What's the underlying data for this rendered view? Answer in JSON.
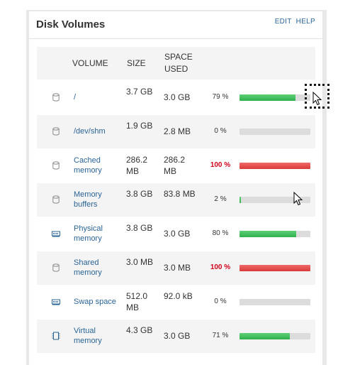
{
  "panel": {
    "title": "Disk Volumes",
    "edit_label": "EDIT",
    "help_label": "HELP"
  },
  "table": {
    "headers": {
      "volume": "VOLUME",
      "size": "SIZE",
      "space_used": "SPACE USED"
    },
    "rows": [
      {
        "icon": "disk-icon",
        "volume": "/",
        "size": "3.7 GB",
        "used": "3.0 GB",
        "percent_label": "79 %",
        "percent": 79,
        "critical": false
      },
      {
        "icon": "disk-icon",
        "volume": "/dev/shm",
        "size": "1.9 GB",
        "used": "2.8 MB",
        "percent_label": "0 %",
        "percent": 0,
        "critical": false
      },
      {
        "icon": "disk-icon",
        "volume": "Cached memory",
        "size": "286.2 MB",
        "used": "286.2 MB",
        "percent_label": "100 %",
        "percent": 100,
        "critical": true
      },
      {
        "icon": "disk-icon",
        "volume": "Memory buffers",
        "size": "3.8 GB",
        "used": "83.8 MB",
        "percent_label": "2 %",
        "percent": 2,
        "critical": false
      },
      {
        "icon": "ram-icon",
        "volume": "Physical memory",
        "size": "3.8 GB",
        "used": "3.0 GB",
        "percent_label": "80 %",
        "percent": 80,
        "critical": false
      },
      {
        "icon": "disk-icon",
        "volume": "Shared memory",
        "size": "3.0 MB",
        "used": "3.0 MB",
        "percent_label": "100 %",
        "percent": 100,
        "critical": true
      },
      {
        "icon": "ram-icon",
        "volume": "Swap space",
        "size": "512.0 MB",
        "used": "92.0 kB",
        "percent_label": "0 %",
        "percent": 0,
        "critical": false
      },
      {
        "icon": "chip-icon",
        "volume": "Virtual memory",
        "size": "4.3 GB",
        "used": "3.0 GB",
        "percent_label": "71 %",
        "percent": 71,
        "critical": false
      }
    ]
  },
  "colors": {
    "link": "#2a6496",
    "bar_ok": "#3bbf5a",
    "bar_critical": "#d93a3a",
    "bar_track": "#dcdcdc",
    "critical_text": "#d0021b"
  }
}
